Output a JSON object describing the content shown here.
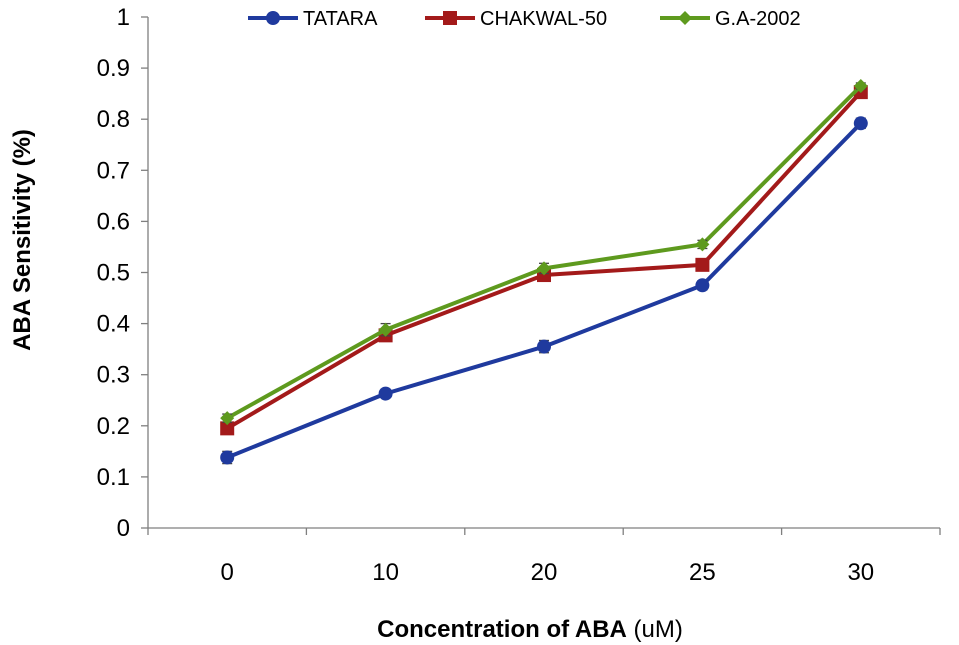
{
  "chart_data": {
    "type": "line",
    "categories": [
      "0",
      "10",
      "20",
      "25",
      "30"
    ],
    "series": [
      {
        "name": "TATARA",
        "values": [
          0.138,
          0.263,
          0.355,
          0.475,
          0.792
        ],
        "errors": [
          0.012,
          0.008,
          0.012,
          0.009,
          0.01
        ],
        "color": "#1f3a9e",
        "marker": "circle"
      },
      {
        "name": "CHAKWAL-50",
        "values": [
          0.195,
          0.377,
          0.495,
          0.515,
          0.853
        ],
        "errors": [
          0.008,
          0.01,
          0.008,
          0.008,
          0.008
        ],
        "color": "#a31a1a",
        "marker": "square"
      },
      {
        "name": "G.A-2002",
        "values": [
          0.215,
          0.388,
          0.508,
          0.555,
          0.865
        ],
        "errors": [
          0.008,
          0.012,
          0.01,
          0.008,
          0.006
        ],
        "color": "#5e9a1e",
        "marker": "diamond"
      }
    ],
    "ylim": [
      0,
      1
    ],
    "yticks": [
      "0",
      "0.1",
      "0.2",
      "0.3",
      "0.4",
      "0.5",
      "0.6",
      "0.7",
      "0.8",
      "0.9",
      "1"
    ],
    "ylabel": "ABA Sensitivity (%)",
    "xlabel_main": "Concentration of ABA",
    "xlabel_unit": " (uM)",
    "legend_position": "top",
    "grid": false
  }
}
